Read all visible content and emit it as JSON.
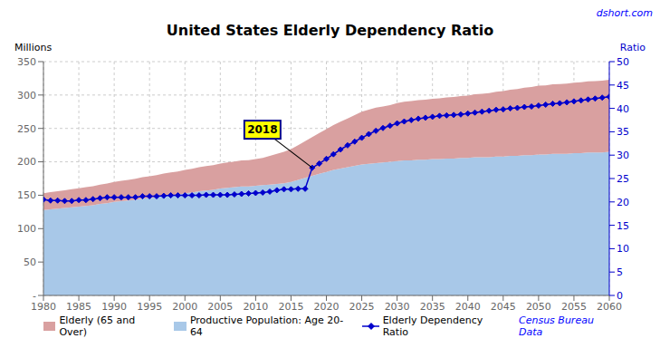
{
  "chart_data": {
    "type": "area",
    "title": "United States Elderly Dependency Ratio",
    "y_label": "Millions",
    "y2_label": "Ratio",
    "annotations": [
      {
        "text": "dshort.com"
      },
      {
        "text": "Census Bureau Data"
      },
      {
        "text": "2018",
        "x": 2018
      }
    ],
    "stacked": true,
    "grid": true,
    "legend": "bottom",
    "x": [
      1980,
      1981,
      1982,
      1983,
      1984,
      1985,
      1986,
      1987,
      1988,
      1989,
      1990,
      1991,
      1992,
      1993,
      1994,
      1995,
      1996,
      1997,
      1998,
      1999,
      2000,
      2001,
      2002,
      2003,
      2004,
      2005,
      2006,
      2007,
      2008,
      2009,
      2010,
      2011,
      2012,
      2013,
      2014,
      2015,
      2016,
      2017,
      2018,
      2019,
      2020,
      2021,
      2022,
      2023,
      2024,
      2025,
      2026,
      2027,
      2028,
      2029,
      2030,
      2031,
      2032,
      2033,
      2034,
      2035,
      2036,
      2037,
      2038,
      2039,
      2040,
      2041,
      2042,
      2043,
      2044,
      2045,
      2046,
      2047,
      2048,
      2049,
      2050,
      2051,
      2052,
      2053,
      2054,
      2055,
      2056,
      2057,
      2058,
      2059,
      2060
    ],
    "xlim": [
      1980,
      2060
    ],
    "xticks": [
      1980,
      1985,
      1990,
      1995,
      2000,
      2005,
      2010,
      2015,
      2020,
      2025,
      2030,
      2035,
      2040,
      2045,
      2050,
      2055,
      2060
    ],
    "ylim": [
      0,
      350
    ],
    "yticks": [
      {
        "value": 0,
        "label": "-"
      },
      50,
      100,
      150,
      200,
      250,
      300,
      350
    ],
    "y2lim": [
      0,
      50
    ],
    "y2ticks": [
      0,
      5,
      10,
      15,
      20,
      25,
      30,
      35,
      40,
      45,
      50
    ],
    "series": [
      {
        "name": "Elderly (65 and Over)",
        "type": "area",
        "color": "#d9a0a0",
        "values": [
          25,
          25.5,
          26,
          26.5,
          27,
          27.5,
          28,
          28.5,
          29,
          29.5,
          30,
          30.5,
          31,
          31.5,
          32,
          32.5,
          33,
          33.5,
          34,
          34.5,
          35,
          35.5,
          36,
          36.5,
          37,
          37.5,
          38,
          38.5,
          39,
          39.5,
          40,
          41,
          43,
          45,
          47,
          49,
          52,
          55,
          58,
          61,
          64,
          67,
          70,
          73,
          76,
          79,
          81,
          83,
          84,
          85,
          87,
          88,
          89,
          89.5,
          90,
          90.5,
          91,
          91.5,
          92,
          92.5,
          93,
          94,
          95,
          96,
          97,
          98,
          99,
          100,
          101,
          102,
          103,
          103.5,
          104,
          104.5,
          105,
          105.5,
          106,
          106.5,
          107,
          107.5,
          108
        ]
      },
      {
        "name": "Productive Population: Age 20-64",
        "type": "area",
        "color": "#a8c8e8",
        "values": [
          128,
          129,
          130,
          131,
          132,
          133,
          134,
          135,
          137,
          138,
          140,
          141,
          142,
          143,
          145,
          146,
          147,
          149,
          150,
          151,
          153,
          154,
          156,
          157,
          158,
          160,
          161,
          162,
          163,
          163,
          164,
          165,
          166,
          167,
          168,
          170,
          173,
          176,
          179,
          182,
          185,
          188,
          190,
          192,
          194,
          196,
          197,
          198,
          199,
          200,
          201,
          202,
          202,
          203,
          203,
          204,
          204,
          205,
          205,
          206,
          206,
          207,
          207,
          207,
          208,
          208,
          209,
          209,
          210,
          210,
          211,
          211,
          212,
          212,
          212,
          213,
          213,
          214,
          214,
          214,
          215
        ]
      },
      {
        "name": "Elderly Dependency Ratio",
        "type": "line",
        "axis": "y2",
        "marker": "diamond",
        "color": "#0000cc",
        "values": [
          20.5,
          20.3,
          20.3,
          20.2,
          20.2,
          20.4,
          20.4,
          20.6,
          20.8,
          21.0,
          21.0,
          21.0,
          21.0,
          21.0,
          21.2,
          21.2,
          21.2,
          21.3,
          21.4,
          21.4,
          21.4,
          21.4,
          21.4,
          21.5,
          21.5,
          21.5,
          21.5,
          21.6,
          21.7,
          21.8,
          21.9,
          22.0,
          22.2,
          22.5,
          22.7,
          22.7,
          22.8,
          22.8,
          27.3,
          28.2,
          29.2,
          30.2,
          31.2,
          32.1,
          32.9,
          33.7,
          34.5,
          35.2,
          35.8,
          36.3,
          36.8,
          37.2,
          37.5,
          37.8,
          38.0,
          38.2,
          38.4,
          38.5,
          38.6,
          38.7,
          38.9,
          39.1,
          39.3,
          39.5,
          39.7,
          39.8,
          40.0,
          40.1,
          40.3,
          40.4,
          40.6,
          40.8,
          41.0,
          41.1,
          41.3,
          41.5,
          41.7,
          41.9,
          42.1,
          42.3,
          42.5
        ]
      }
    ]
  }
}
